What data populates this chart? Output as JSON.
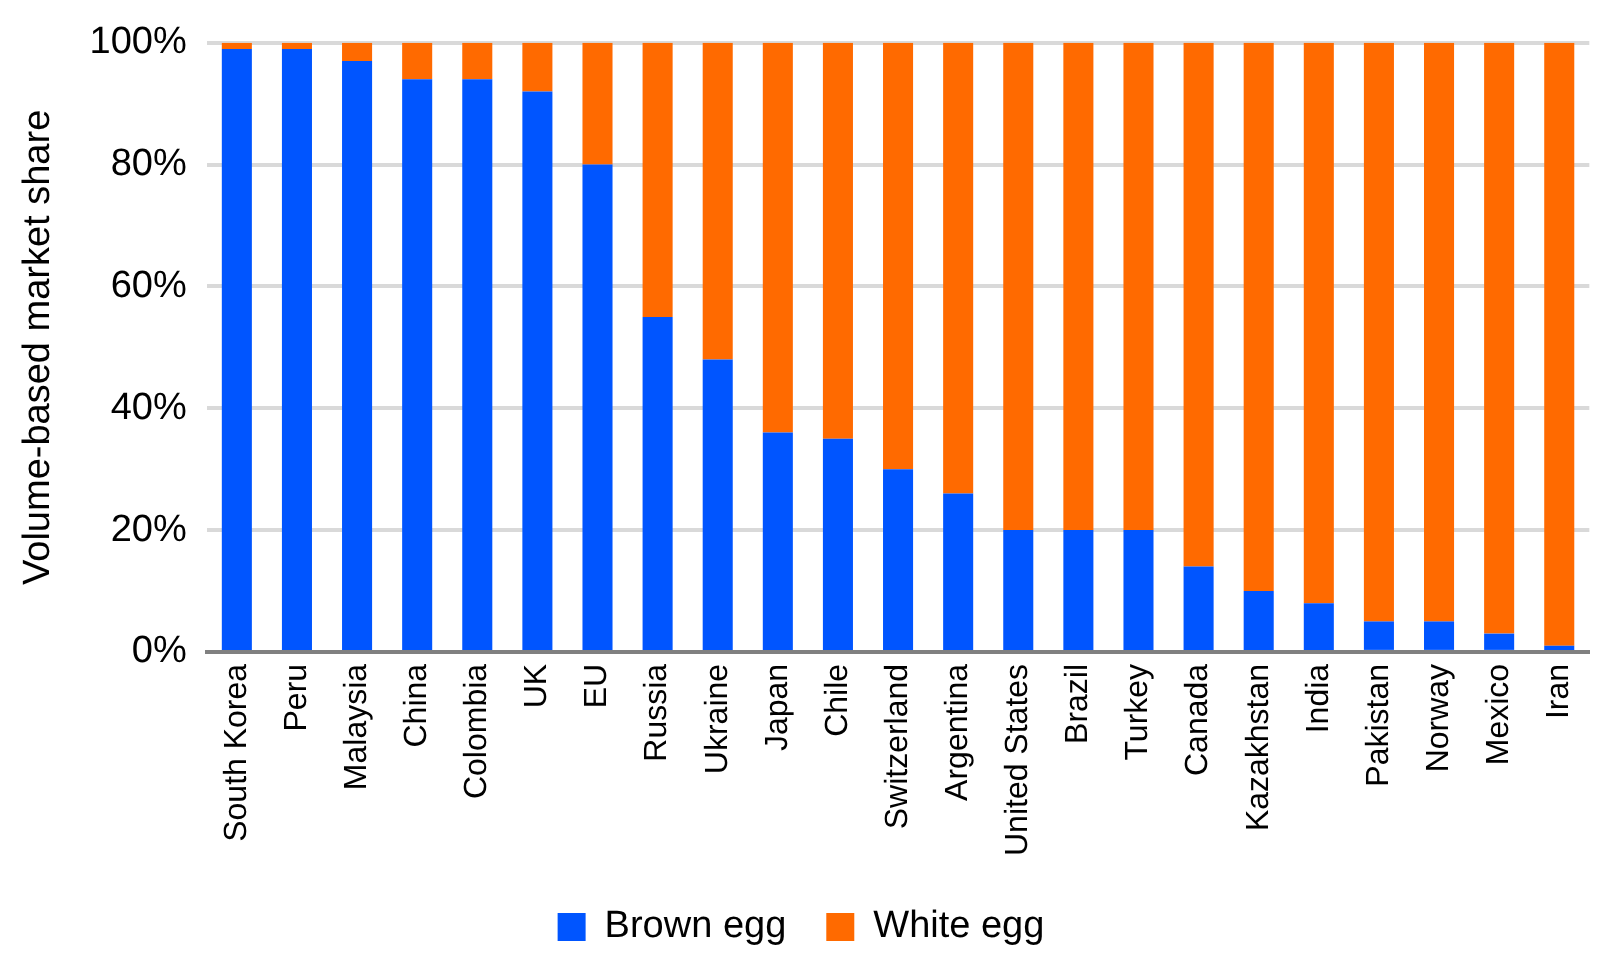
{
  "chart_data": {
    "type": "bar",
    "stacked": true,
    "ylabel": "Volume-based market share",
    "categories": [
      "South Korea",
      "Peru",
      "Malaysia",
      "China",
      "Colombia",
      "UK",
      "EU",
      "Russia",
      "Ukraine",
      "Japan",
      "Chile",
      "Switzerland",
      "Argentina",
      "United States",
      "Brazil",
      "Turkey",
      "Canada",
      "Kazakhstan",
      "India",
      "Pakistan",
      "Norway",
      "Mexico",
      "Iran"
    ],
    "series": [
      {
        "name": "Brown egg",
        "color": "#0055ff",
        "values": [
          99,
          99,
          97,
          94,
          94,
          92,
          80,
          55,
          48,
          36,
          35,
          30,
          26,
          20,
          20,
          20,
          14,
          10,
          8,
          5,
          5,
          3,
          1
        ]
      },
      {
        "name": "White egg",
        "color": "#ff6a00",
        "values": [
          1,
          1,
          3,
          6,
          6,
          8,
          20,
          45,
          52,
          64,
          65,
          70,
          74,
          80,
          80,
          80,
          86,
          90,
          92,
          95,
          95,
          97,
          99
        ]
      }
    ],
    "ylim": [
      0,
      100
    ],
    "yticks": [
      {
        "value": 0,
        "label": "0%"
      },
      {
        "value": 20,
        "label": "20%"
      },
      {
        "value": 40,
        "label": "40%"
      },
      {
        "value": 60,
        "label": "60%"
      },
      {
        "value": 80,
        "label": "80%"
      },
      {
        "value": 100,
        "label": "100%"
      }
    ],
    "grid": "y",
    "legend": "bottom"
  }
}
